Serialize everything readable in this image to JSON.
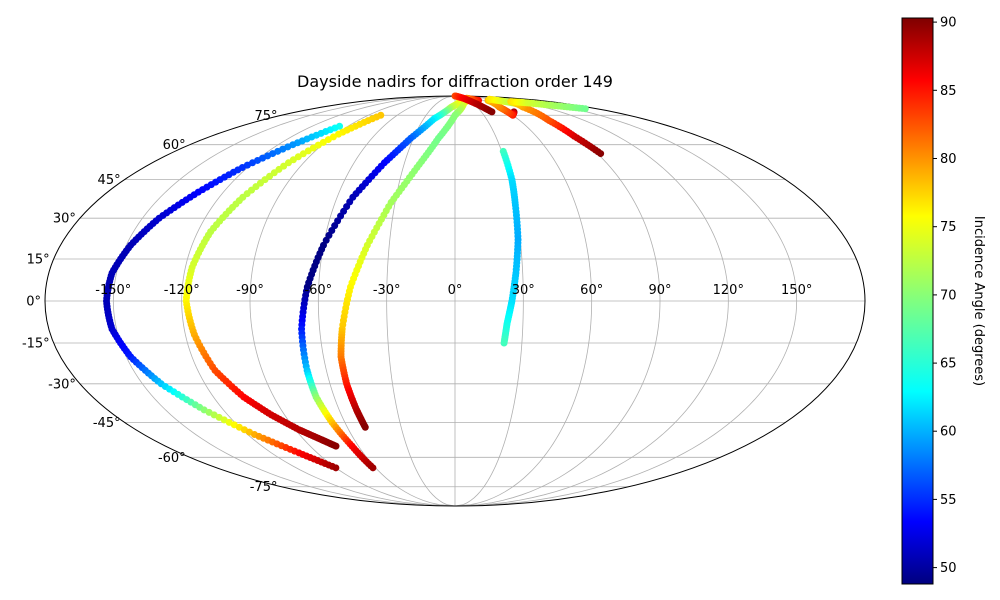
{
  "chart_data": {
    "type": "scatter",
    "projection": "mollweide",
    "title": "Dayside nadirs for diffraction order 149",
    "x_ticks": [
      "-150°",
      "-120°",
      "-90°",
      "-60°",
      "-30°",
      "0°",
      "30°",
      "60°",
      "90°",
      "120°",
      "150°"
    ],
    "x_tick_values": [
      -150,
      -120,
      -90,
      -60,
      -30,
      0,
      30,
      60,
      90,
      120,
      150
    ],
    "y_ticks": [
      "-75°",
      "-60°",
      "-45°",
      "-30°",
      "-15°",
      "0°",
      "15°",
      "30°",
      "45°",
      "60°",
      "75°"
    ],
    "y_tick_values": [
      -75,
      -60,
      -45,
      -30,
      -15,
      0,
      15,
      30,
      45,
      60,
      75
    ],
    "grid": true,
    "colormap": "jet",
    "colorbar": {
      "label": "Incidence Angle (degrees)",
      "range": [
        48.8,
        90.3
      ],
      "ticks": [
        "50",
        "55",
        "60",
        "65",
        "70",
        "75",
        "80",
        "85",
        "90"
      ],
      "tick_values": [
        50,
        55,
        60,
        65,
        70,
        75,
        80,
        85,
        90
      ]
    },
    "tracks": [
      {
        "lon": [
          -97,
          -110,
          -123,
          -133,
          -142,
          -148,
          -152,
          -153,
          -152,
          -148,
          -141,
          -130,
          -116,
          -102,
          -90
        ],
        "lat": [
          69,
          60,
          50,
          40,
          30,
          20,
          10,
          0,
          -10,
          -20,
          -30,
          -40,
          -50,
          -58,
          -65
        ],
        "incidence": [
          65,
          60,
          56,
          54,
          52,
          51,
          51,
          51,
          52,
          55,
          62,
          70,
          78,
          85,
          89
        ]
      },
      {
        "lon": [
          -77,
          -88,
          -99,
          -108,
          -114,
          -117,
          -118,
          -116,
          -112,
          -105,
          -97,
          -88,
          -80,
          -74
        ],
        "lat": [
          75,
          65,
          52,
          38,
          25,
          12,
          0,
          -12,
          -25,
          -35,
          -42,
          -48,
          -52,
          -55
        ],
        "incidence": [
          77,
          75,
          73,
          72,
          72,
          73,
          75,
          78,
          82,
          85,
          87,
          88,
          89,
          90
        ]
      },
      {
        "lon": [
          25,
          10,
          -5,
          -20,
          -32,
          -42,
          -52,
          -60,
          -65,
          -68,
          -69,
          -69,
          -67,
          -64,
          -62
        ],
        "lat": [
          86,
          84,
          80,
          73,
          63,
          52,
          38,
          20,
          5,
          -10,
          -25,
          -35,
          -45,
          -55,
          -65
        ],
        "incidence": [
          78,
          76,
          72,
          64,
          58,
          54,
          51,
          49,
          49,
          55,
          62,
          70,
          77,
          85,
          89
        ]
      },
      {
        "lon": [
          50,
          35,
          15,
          0,
          -12,
          -22,
          -32,
          -40,
          -46,
          -50,
          -52,
          -52,
          -51,
          -50
        ],
        "lat": [
          85,
          87,
          83,
          75,
          63,
          50,
          36,
          20,
          5,
          -10,
          -20,
          -30,
          -40,
          -47
        ],
        "incidence": [
          85,
          80,
          74,
          70,
          69,
          70,
          71,
          73,
          75,
          77,
          80,
          84,
          88,
          90
        ]
      },
      {
        "lon": [
          10,
          25,
          35,
          42
        ],
        "lat": [
          90,
          87,
          82,
          77
        ],
        "incidence": [
          82,
          85,
          88,
          90
        ]
      },
      {
        "lon": [
          31,
          31,
          30,
          29,
          27,
          25,
          23,
          22
        ],
        "lat": [
          57,
          45,
          35,
          22,
          10,
          0,
          -8,
          -15
        ],
        "incidence": [
          67,
          63,
          62,
          61,
          62,
          63,
          65,
          67
        ]
      },
      {
        "lon": [
          67,
          60,
          60,
          70,
          85,
          95,
          103
        ],
        "lat": [
          77,
          75,
          80,
          85,
          86,
          84,
          82
        ],
        "incidence": [
          90,
          84,
          80,
          78,
          76,
          73,
          70
        ]
      },
      {
        "lon": [
          92,
          88,
          87,
          92,
          105,
          125,
          145,
          165
        ],
        "lat": [
          56,
          64,
          72,
          80,
          84,
          83,
          81,
          79
        ],
        "incidence": [
          90,
          87,
          82,
          79,
          76,
          73,
          71,
          69
        ]
      }
    ]
  }
}
